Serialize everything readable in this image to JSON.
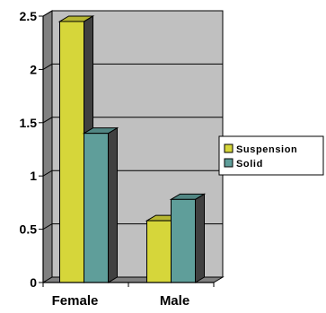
{
  "chart_data": {
    "type": "bar",
    "categories": [
      "Female",
      "Male"
    ],
    "series": [
      {
        "name": "Suspension",
        "values": [
          2.45,
          0.58
        ],
        "color": "#d6d63a"
      },
      {
        "name": "Solid",
        "values": [
          1.4,
          0.78
        ],
        "color": "#5f9e9a"
      }
    ],
    "ylim": [
      0,
      2.5
    ],
    "yticks": [
      "0",
      "0.5",
      "1",
      "1.5",
      "2",
      "2.5"
    ],
    "grid": true,
    "legend": "right",
    "style": {
      "wall": "#c0c0c0",
      "floor": "#808080",
      "side": "#404040"
    }
  }
}
